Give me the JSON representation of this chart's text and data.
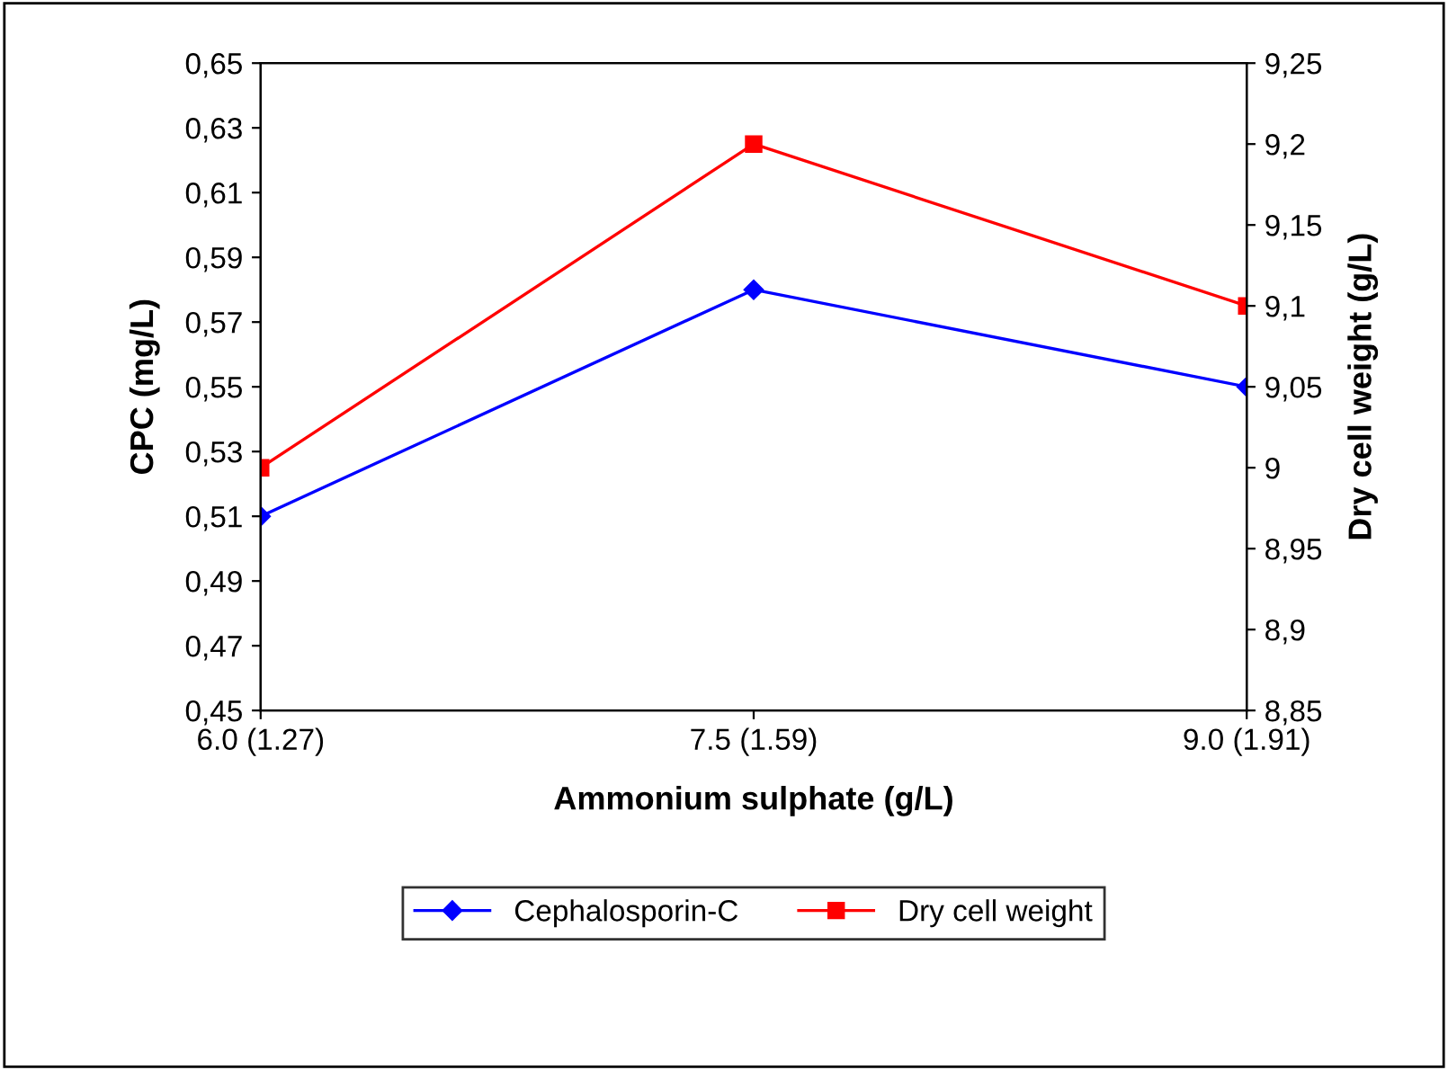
{
  "chart_data": {
    "type": "line",
    "xlabel": "Ammonium sulphate (g/L)",
    "ylabel": "CPC (mg/L)",
    "y2label": "Dry cell weight (g/L)",
    "categories": [
      "6.0 (1.27)",
      "7.5 (1.59)",
      "9.0 (1.91)"
    ],
    "series": [
      {
        "name": "Cephalosporin-C",
        "color": "#0000ff",
        "values": [
          0.51,
          0.58,
          0.55
        ],
        "marker": "diamond"
      },
      {
        "name": "Dry cell weight",
        "color": "#ff0000",
        "values": [
          9.0,
          9.2,
          9.1
        ],
        "marker": "square",
        "axis": "y2"
      }
    ],
    "ylim": [
      0.45,
      0.65
    ],
    "yticks": [
      {
        "value": 0.45,
        "label": "0,45"
      },
      {
        "value": 0.47,
        "label": "0,47"
      },
      {
        "value": 0.49,
        "label": "0,49"
      },
      {
        "value": 0.51,
        "label": "0,51"
      },
      {
        "value": 0.53,
        "label": "0,53"
      },
      {
        "value": 0.55,
        "label": "0,55"
      },
      {
        "value": 0.57,
        "label": "0,57"
      },
      {
        "value": 0.59,
        "label": "0,59"
      },
      {
        "value": 0.61,
        "label": "0,61"
      },
      {
        "value": 0.63,
        "label": "0,63"
      },
      {
        "value": 0.65,
        "label": "0,65"
      }
    ],
    "y2lim": [
      8.85,
      9.25
    ],
    "y2ticks": [
      {
        "value": 8.85,
        "label": "8,85"
      },
      {
        "value": 8.9,
        "label": "8,9"
      },
      {
        "value": 8.95,
        "label": "8,95"
      },
      9,
      {
        "value": 9.05,
        "label": "9,05"
      },
      {
        "value": 9.1,
        "label": "9,1"
      },
      {
        "value": 9.15,
        "label": "9,15"
      },
      {
        "value": 9.2,
        "label": "9,2"
      },
      {
        "value": 9.25,
        "label": "9,25"
      }
    ],
    "legend": "bottom",
    "grid": false,
    "line_style": "solid"
  }
}
